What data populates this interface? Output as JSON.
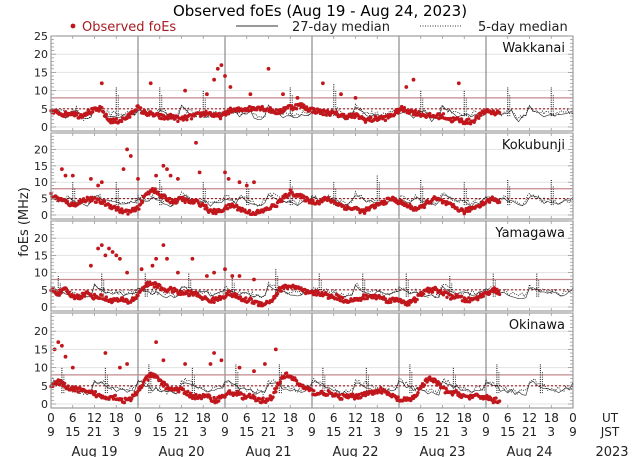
{
  "chart_data": {
    "type": "scatter",
    "title": "Observed foEs (Aug 19 - Aug 24, 2023)",
    "ylabel": "foEs (MHz)",
    "xlabel": "",
    "ylim": [
      0,
      25
    ],
    "grid": true,
    "legend": {
      "placement": "top",
      "entries": [
        {
          "label": "Observed foEs",
          "style": "red-dots",
          "color": "#c0161c"
        },
        {
          "label": "27-day median",
          "style": "solid-line",
          "color": "#333333"
        },
        {
          "label": "5-day median",
          "style": "dotted-line",
          "color": "#333333"
        }
      ]
    },
    "colors": {
      "observed": "#c0161c",
      "threshold_solid": "#c48a8e",
      "threshold_dotted": "#a41c22",
      "median": "#222222",
      "day_divider": "#8a8a8a",
      "gridline": "#e2e2e2"
    },
    "yticks": [
      0,
      5,
      10,
      15,
      20,
      25
    ],
    "panel_yticks": [
      [
        0,
        5,
        10,
        15,
        20,
        25
      ],
      [
        0,
        5,
        10,
        15,
        20
      ],
      [
        0,
        5,
        10,
        15,
        20
      ],
      [
        0,
        5,
        10,
        15,
        20
      ]
    ],
    "xaxis": {
      "days": [
        "Aug 19",
        "Aug 20",
        "Aug 21",
        "Aug 22",
        "Aug 23",
        "Aug 24"
      ],
      "ut_ticks": [
        "0",
        "6",
        "12",
        "18",
        "0",
        "6",
        "12",
        "18",
        "0",
        "6",
        "12",
        "18",
        "0",
        "6",
        "12",
        "18",
        "0",
        "6",
        "12",
        "18",
        "0",
        "6",
        "12",
        "18",
        "0"
      ],
      "jst_ticks": [
        "9",
        "15",
        "21",
        "3",
        "9",
        "15",
        "21",
        "3",
        "9",
        "15",
        "21",
        "3",
        "9",
        "15",
        "21",
        "3",
        "9",
        "15",
        "21",
        "3",
        "9",
        "15",
        "21",
        "3",
        "9"
      ],
      "ut_label": "UT",
      "jst_label": "JST",
      "year_label": "2023",
      "observed_until_hours": 124
    },
    "reference_lines": [
      {
        "name": "8 MHz threshold",
        "value": 8,
        "style": "solid"
      },
      {
        "name": "5 MHz threshold",
        "value": 5,
        "style": "dotted"
      }
    ],
    "stations": [
      {
        "name": "Wakkanai",
        "observed_base": [
          4,
          4,
          3.5,
          4,
          3,
          4,
          4.5,
          5,
          2,
          1.5,
          2,
          3,
          5.5,
          4,
          3.5,
          3,
          2.5,
          3,
          2,
          2.5,
          3,
          3.5,
          4,
          3,
          3,
          4.5,
          4.5,
          5,
          5,
          5.5,
          5,
          4.5,
          4,
          5.5,
          5.5,
          6,
          5,
          4.5,
          4,
          4,
          3.5,
          3,
          3,
          3,
          2,
          2,
          2.5,
          2.5,
          3.5,
          5,
          4.5,
          4,
          3.5,
          3,
          3,
          3,
          2,
          2,
          1.5,
          1.5,
          3,
          4.5,
          4,
          4
        ],
        "outliers": [
          [
            28,
            12
          ],
          [
            55,
            12
          ],
          [
            74,
            10
          ],
          [
            86,
            9
          ],
          [
            90,
            13
          ],
          [
            92,
            16
          ],
          [
            94,
            17
          ],
          [
            96,
            14
          ],
          [
            99,
            11
          ],
          [
            110,
            9
          ],
          [
            120,
            16
          ],
          [
            128,
            9
          ],
          [
            136,
            8
          ],
          [
            150,
            12
          ],
          [
            160,
            9
          ],
          [
            168,
            8
          ],
          [
            196,
            11
          ],
          [
            200,
            13
          ],
          [
            225,
            12
          ]
        ],
        "median27": [
          4,
          4,
          4,
          4,
          3,
          3.5,
          4,
          4.5,
          3,
          2,
          2.5,
          3,
          5.5,
          4.5,
          4,
          3.5,
          3,
          3.5,
          3,
          3,
          3,
          3.5,
          3.5,
          3.5,
          3
        ],
        "median5_spikes": [
          [
            36,
            11
          ],
          [
            60,
            11
          ],
          [
            84,
            10
          ],
          [
            132,
            11
          ],
          [
            156,
            12
          ],
          [
            204,
            10
          ],
          [
            228,
            10
          ],
          [
            252,
            11
          ],
          [
            276,
            11
          ]
        ]
      },
      {
        "name": "Kokubunji",
        "observed_base": [
          6,
          5,
          4,
          3,
          4,
          5,
          4.5,
          4,
          3,
          2,
          1,
          1,
          2,
          6,
          8,
          6,
          5,
          4,
          5,
          4,
          4,
          3,
          1,
          1,
          2,
          3,
          2,
          1,
          0.5,
          1,
          2,
          3,
          5,
          7,
          6,
          5,
          4,
          4,
          5,
          4,
          3,
          2,
          2,
          1,
          2,
          3,
          4,
          5,
          4,
          3,
          2,
          2,
          4,
          5,
          4,
          3,
          2,
          1,
          2,
          3,
          4,
          5,
          4
        ],
        "outliers": [
          [
            6,
            14
          ],
          [
            8,
            12
          ],
          [
            12,
            12
          ],
          [
            22,
            11
          ],
          [
            26,
            9
          ],
          [
            28,
            10
          ],
          [
            40,
            14
          ],
          [
            42,
            20
          ],
          [
            44,
            18
          ],
          [
            48,
            11
          ],
          [
            58,
            12
          ],
          [
            62,
            15
          ],
          [
            64,
            14
          ],
          [
            66,
            12
          ],
          [
            70,
            11
          ],
          [
            80,
            22
          ],
          [
            82,
            13
          ],
          [
            96,
            13
          ],
          [
            98,
            11
          ],
          [
            104,
            10
          ],
          [
            108,
            9
          ],
          [
            112,
            10
          ]
        ],
        "median27": [
          5,
          5,
          4,
          4,
          5,
          5,
          4.5,
          4,
          3.5,
          3,
          3,
          4,
          6,
          6,
          5,
          4.5,
          4,
          4,
          4,
          3.5,
          3,
          3.5,
          4,
          4,
          4
        ],
        "median5_spikes": [
          [
            12,
            10
          ],
          [
            36,
            10
          ],
          [
            60,
            11
          ],
          [
            84,
            10
          ],
          [
            108,
            10
          ],
          [
            132,
            11
          ],
          [
            156,
            10
          ],
          [
            180,
            12
          ],
          [
            204,
            11
          ],
          [
            228,
            10
          ],
          [
            252,
            11
          ],
          [
            276,
            11
          ]
        ]
      },
      {
        "name": "Yamagawa",
        "observed_base": [
          5,
          4,
          5,
          3,
          3,
          4,
          3,
          3,
          2,
          2,
          2,
          1.5,
          3,
          6,
          7,
          6,
          5,
          5,
          4,
          4,
          4,
          3,
          2,
          2,
          3,
          4,
          3,
          2,
          2,
          1,
          1,
          2,
          5,
          6,
          6,
          5,
          4,
          4,
          4,
          3,
          3,
          2,
          2,
          2,
          3,
          3,
          3,
          2,
          2,
          2,
          1,
          2,
          4,
          5,
          5,
          4,
          3,
          3,
          2,
          2,
          3,
          4,
          5,
          4
        ],
        "outliers": [
          [
            22,
            12
          ],
          [
            26,
            17
          ],
          [
            28,
            18
          ],
          [
            30,
            15
          ],
          [
            32,
            17
          ],
          [
            34,
            16
          ],
          [
            36,
            15
          ],
          [
            38,
            14
          ],
          [
            42,
            10
          ],
          [
            50,
            11
          ],
          [
            56,
            12
          ],
          [
            58,
            14
          ],
          [
            62,
            18
          ],
          [
            64,
            14
          ],
          [
            70,
            10
          ],
          [
            78,
            14
          ],
          [
            86,
            9
          ],
          [
            90,
            10
          ],
          [
            96,
            11
          ],
          [
            100,
            9
          ],
          [
            104,
            9
          ],
          [
            112,
            8
          ]
        ],
        "median27": [
          5,
          5,
          4.5,
          4,
          4,
          4,
          4,
          3.5,
          3,
          3,
          3,
          3,
          6,
          5.5,
          5,
          4.5,
          4,
          4,
          4,
          4,
          3.5,
          3.5,
          4,
          4,
          4
        ],
        "median5_spikes": [
          [
            4,
            9
          ],
          [
            28,
            10
          ],
          [
            52,
            10
          ],
          [
            76,
            10
          ],
          [
            100,
            9
          ],
          [
            124,
            11
          ],
          [
            148,
            10
          ],
          [
            172,
            10
          ],
          [
            196,
            10
          ],
          [
            220,
            9
          ],
          [
            244,
            10
          ],
          [
            268,
            10
          ]
        ]
      },
      {
        "name": "Okinawa",
        "observed_base": [
          5,
          6,
          5,
          4,
          4,
          3,
          3,
          2,
          2,
          2,
          1,
          1,
          3,
          6,
          8,
          7,
          5,
          4,
          4,
          3,
          2,
          2,
          2,
          1,
          2,
          3,
          3,
          2,
          2,
          1,
          1,
          2,
          6,
          8,
          7,
          5,
          4,
          3,
          3,
          3,
          2,
          2,
          2,
          2,
          3,
          3,
          4,
          3,
          2,
          1,
          1,
          2,
          5,
          7,
          6,
          4,
          3,
          3,
          2,
          2,
          2,
          2,
          1,
          1
        ],
        "outliers": [
          [
            2,
            15
          ],
          [
            4,
            17
          ],
          [
            6,
            16
          ],
          [
            8,
            13
          ],
          [
            12,
            10
          ],
          [
            30,
            14
          ],
          [
            38,
            10
          ],
          [
            42,
            11
          ],
          [
            58,
            17
          ],
          [
            62,
            12
          ],
          [
            74,
            11
          ],
          [
            88,
            11
          ],
          [
            90,
            14
          ],
          [
            94,
            12
          ],
          [
            104,
            10
          ],
          [
            112,
            9
          ],
          [
            118,
            11
          ],
          [
            124,
            15
          ]
        ],
        "median27": [
          6,
          6,
          5,
          5,
          4,
          4,
          3.5,
          3.5,
          3,
          3,
          3,
          3,
          6,
          6,
          5.5,
          5,
          4.5,
          4,
          4,
          3.5,
          3.5,
          3.5,
          4,
          4,
          4
        ],
        "median5_spikes": [
          [
            6,
            10
          ],
          [
            30,
            10
          ],
          [
            54,
            11
          ],
          [
            78,
            10
          ],
          [
            102,
            11
          ],
          [
            126,
            11
          ],
          [
            150,
            10
          ],
          [
            174,
            10
          ],
          [
            198,
            11
          ],
          [
            222,
            10
          ],
          [
            246,
            11
          ],
          [
            270,
            11
          ]
        ]
      }
    ]
  }
}
